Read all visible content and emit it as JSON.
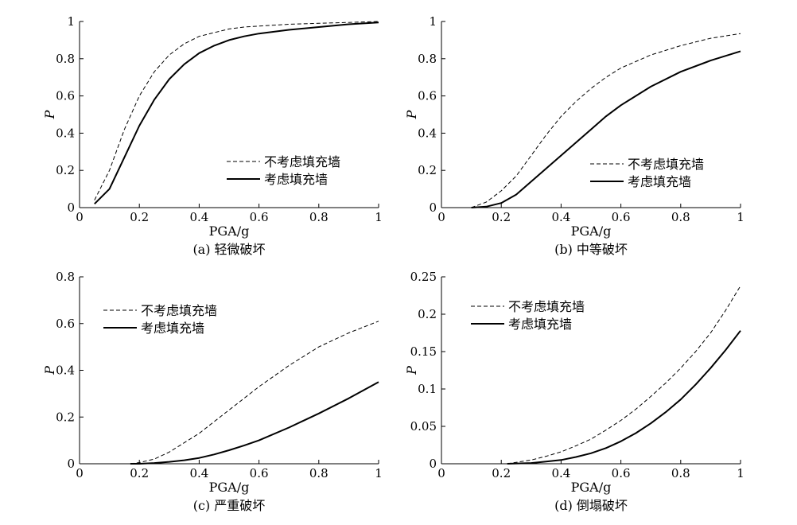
{
  "figure": {
    "panels": [
      {
        "caption": "(a) 轻微破坏",
        "xlabel": "PGA/g",
        "ylabel": "P"
      },
      {
        "caption": "(b) 中等破坏",
        "xlabel": "PGA/g",
        "ylabel": "P"
      },
      {
        "caption": "(c) 严重破坏",
        "xlabel": "PGA/g",
        "ylabel": "P"
      },
      {
        "caption": "(d) 倒塌破坏",
        "xlabel": "PGA/g",
        "ylabel": "P"
      }
    ]
  },
  "chart_data": [
    {
      "type": "line",
      "title": "(a) 轻微破坏",
      "xlabel": "PGA/g",
      "ylabel": "P",
      "xlim": [
        0,
        1
      ],
      "ylim": [
        0,
        1
      ],
      "xticks": [
        "0",
        "0.2",
        "0.4",
        "0.6",
        "0.8",
        "1"
      ],
      "yticks": [
        "0",
        "0.2",
        "0.4",
        "0.6",
        "0.8",
        "1"
      ],
      "legend_position": "center-right",
      "x": [
        0.05,
        0.1,
        0.15,
        0.2,
        0.25,
        0.3,
        0.35,
        0.4,
        0.45,
        0.5,
        0.55,
        0.6,
        0.7,
        0.8,
        0.9,
        1.0
      ],
      "series": [
        {
          "name": "不考虑填充墙",
          "style": "dashed",
          "values": [
            0.04,
            0.2,
            0.42,
            0.6,
            0.73,
            0.82,
            0.88,
            0.92,
            0.94,
            0.96,
            0.97,
            0.975,
            0.985,
            0.99,
            0.995,
            1.0
          ]
        },
        {
          "name": "考虑填充墙",
          "style": "solid",
          "values": [
            0.02,
            0.1,
            0.27,
            0.44,
            0.58,
            0.69,
            0.77,
            0.83,
            0.87,
            0.9,
            0.92,
            0.935,
            0.955,
            0.97,
            0.985,
            0.995
          ]
        }
      ]
    },
    {
      "type": "line",
      "title": "(b) 中等破坏",
      "xlabel": "PGA/g",
      "ylabel": "P",
      "xlim": [
        0,
        1
      ],
      "ylim": [
        0,
        1
      ],
      "xticks": [
        "0",
        "0.2",
        "0.4",
        "0.6",
        "0.8",
        "1"
      ],
      "yticks": [
        "0",
        "0.2",
        "0.4",
        "0.6",
        "0.8",
        "1"
      ],
      "legend_position": "lower-right",
      "x": [
        0.1,
        0.15,
        0.2,
        0.25,
        0.3,
        0.35,
        0.4,
        0.45,
        0.5,
        0.55,
        0.6,
        0.7,
        0.8,
        0.9,
        1.0
      ],
      "series": [
        {
          "name": "不考虑填充墙",
          "style": "dashed",
          "values": [
            0.0,
            0.03,
            0.09,
            0.17,
            0.28,
            0.39,
            0.49,
            0.57,
            0.64,
            0.7,
            0.75,
            0.82,
            0.87,
            0.91,
            0.935
          ]
        },
        {
          "name": "考虑填充墙",
          "style": "solid",
          "values": [
            0.0,
            0.005,
            0.025,
            0.07,
            0.14,
            0.21,
            0.28,
            0.35,
            0.42,
            0.49,
            0.55,
            0.65,
            0.73,
            0.79,
            0.84
          ]
        }
      ]
    },
    {
      "type": "line",
      "title": "(c) 严重破坏",
      "xlabel": "PGA/g",
      "ylabel": "P",
      "xlim": [
        0,
        1
      ],
      "ylim": [
        0,
        0.8
      ],
      "xticks": [
        "0",
        "0.2",
        "0.4",
        "0.6",
        "0.8",
        "1"
      ],
      "yticks": [
        "0",
        "0.2",
        "0.4",
        "0.6",
        "0.8"
      ],
      "legend_position": "upper-left",
      "x": [
        0.17,
        0.2,
        0.25,
        0.3,
        0.35,
        0.4,
        0.45,
        0.5,
        0.55,
        0.6,
        0.7,
        0.8,
        0.9,
        1.0
      ],
      "series": [
        {
          "name": "不考虑填充墙",
          "style": "dashed",
          "values": [
            0.0,
            0.005,
            0.02,
            0.05,
            0.09,
            0.13,
            0.18,
            0.23,
            0.28,
            0.33,
            0.42,
            0.5,
            0.56,
            0.61
          ]
        },
        {
          "name": "考虑填充墙",
          "style": "solid",
          "values": [
            0.0,
            0.0,
            0.003,
            0.008,
            0.015,
            0.025,
            0.04,
            0.058,
            0.078,
            0.1,
            0.155,
            0.215,
            0.28,
            0.35
          ]
        }
      ]
    },
    {
      "type": "line",
      "title": "(d) 倒塌破坏",
      "xlabel": "PGA/g",
      "ylabel": "P",
      "xlim": [
        0,
        1
      ],
      "ylim": [
        0,
        0.25
      ],
      "xticks": [
        "0",
        "0.2",
        "0.4",
        "0.6",
        "0.8",
        "1"
      ],
      "yticks": [
        "0",
        "0.05",
        "0.1",
        "0.15",
        "0.2",
        "0.25"
      ],
      "legend_position": "upper-left",
      "x": [
        0.22,
        0.3,
        0.35,
        0.4,
        0.45,
        0.5,
        0.55,
        0.6,
        0.65,
        0.7,
        0.75,
        0.8,
        0.85,
        0.9,
        0.95,
        1.0
      ],
      "series": [
        {
          "name": "不考虑填充墙",
          "style": "dashed",
          "values": [
            0.0,
            0.005,
            0.01,
            0.016,
            0.024,
            0.033,
            0.045,
            0.058,
            0.073,
            0.09,
            0.108,
            0.128,
            0.15,
            0.175,
            0.205,
            0.238
          ]
        },
        {
          "name": "考虑填充墙",
          "style": "solid",
          "values": [
            0.0,
            0.001,
            0.003,
            0.005,
            0.009,
            0.014,
            0.021,
            0.03,
            0.041,
            0.054,
            0.069,
            0.086,
            0.106,
            0.128,
            0.152,
            0.178
          ]
        }
      ]
    }
  ]
}
